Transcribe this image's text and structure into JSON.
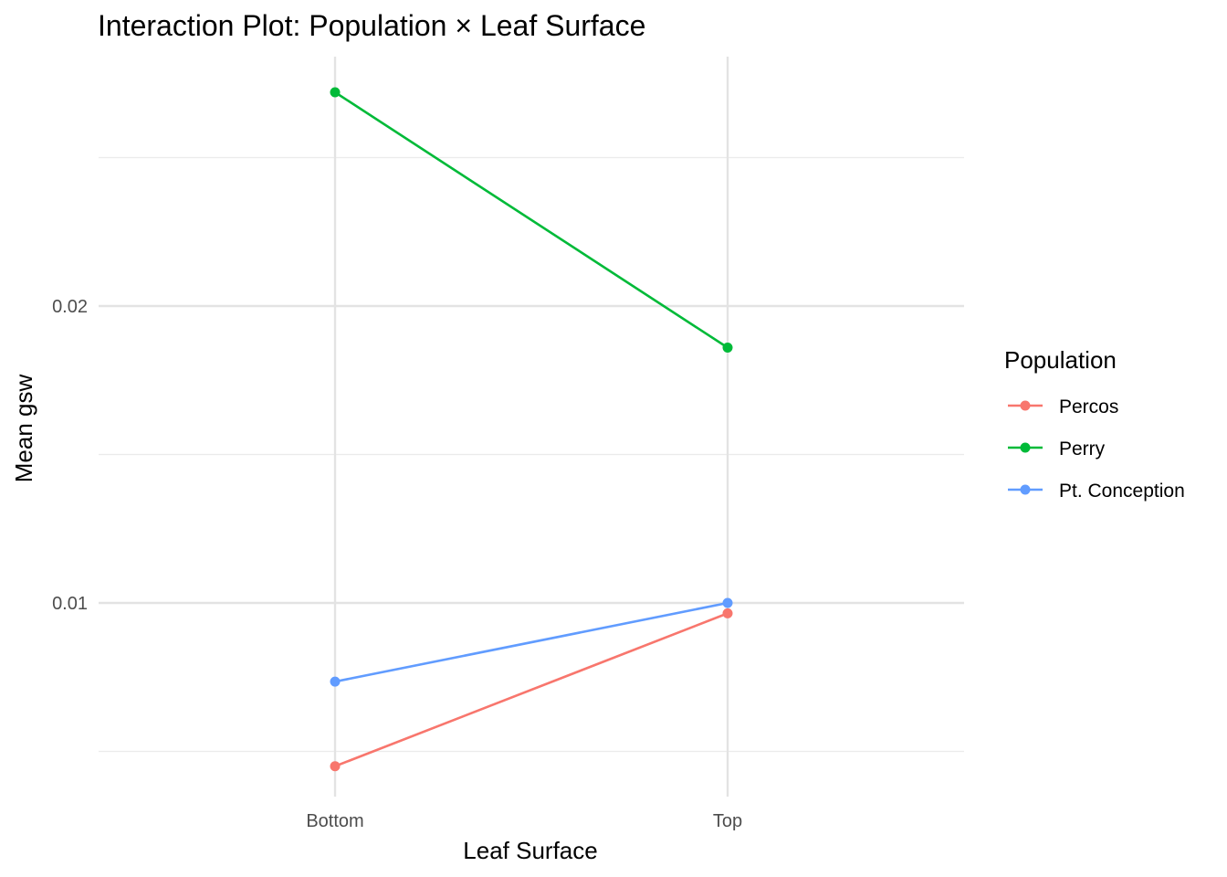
{
  "chart_data": {
    "type": "line",
    "title": "Interaction Plot: Population × Leaf Surface",
    "xlabel": "Leaf Surface",
    "ylabel": "Mean gsw",
    "categories": [
      "Bottom",
      "Top"
    ],
    "y_ticks": [
      0.01,
      0.02
    ],
    "y_tick_labels": [
      "0.01",
      "0.02"
    ],
    "ylim": [
      0.0042,
      0.0275
    ],
    "grid": true,
    "legend": {
      "title": "Population",
      "placement": "right"
    },
    "series": [
      {
        "name": "Percos",
        "color": "#F8766D",
        "values": [
          0.0045,
          0.00965
        ]
      },
      {
        "name": "Perry",
        "color": "#00BA38",
        "values": [
          0.0272,
          0.0186
        ]
      },
      {
        "name": "Pt. Conception",
        "color": "#619CFF",
        "values": [
          0.00735,
          0.01
        ]
      }
    ]
  }
}
